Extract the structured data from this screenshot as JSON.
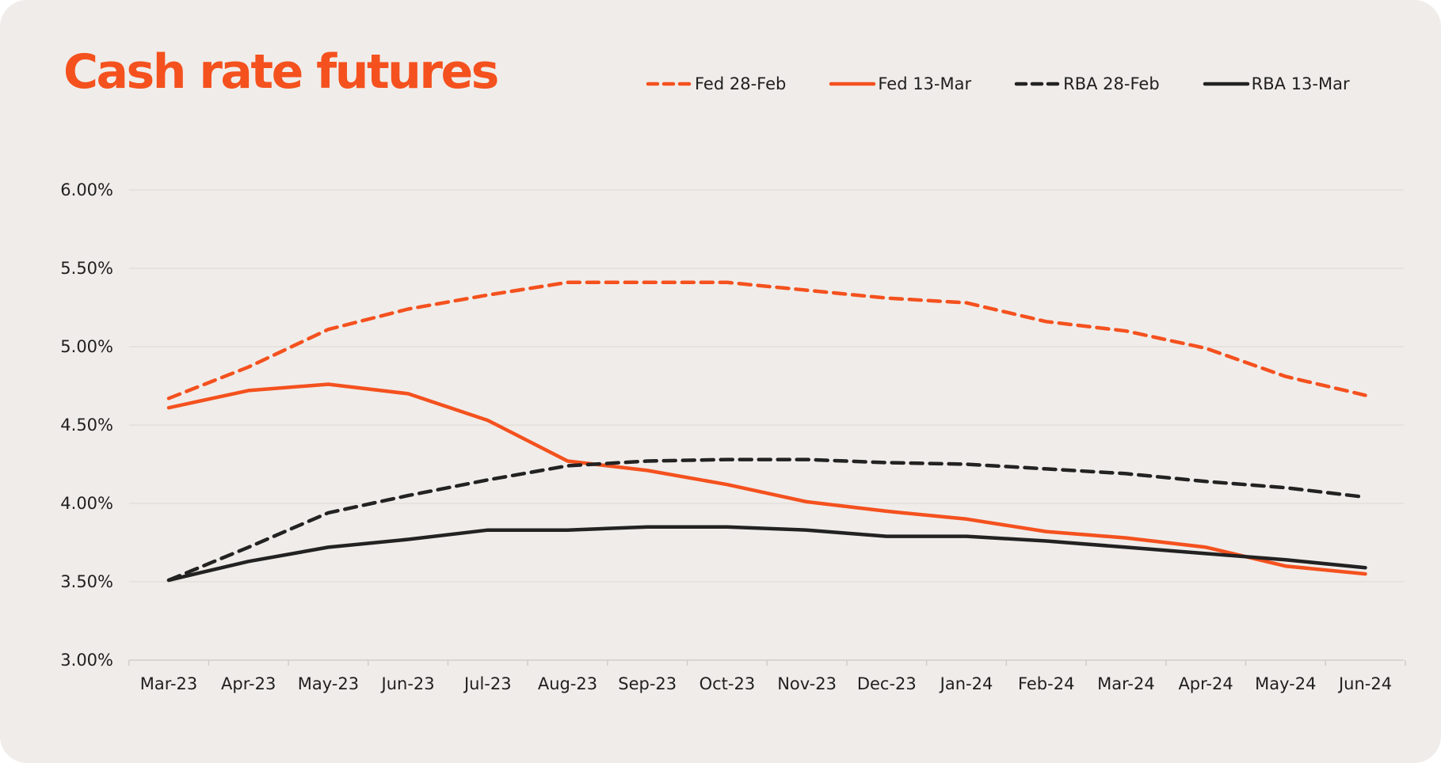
{
  "chart_data": {
    "type": "line",
    "title": "Cash rate futures",
    "xlabel": "",
    "ylabel": "",
    "categories": [
      "Mar-23",
      "Apr-23",
      "May-23",
      "Jun-23",
      "Jul-23",
      "Aug-23",
      "Sep-23",
      "Oct-23",
      "Nov-23",
      "Dec-23",
      "Jan-24",
      "Feb-24",
      "Mar-24",
      "Apr-24",
      "May-24",
      "Jun-24"
    ],
    "ylim": [
      3.0,
      6.0
    ],
    "yticks": [
      3.0,
      3.5,
      4.0,
      4.5,
      5.0,
      5.5,
      6.0
    ],
    "ytick_labels": [
      "3.00%",
      "3.50%",
      "4.00%",
      "4.50%",
      "5.00%",
      "5.50%",
      "6.00%"
    ],
    "grid": "horizontal",
    "legend_position": "top-right",
    "series": [
      {
        "name": "Fed 28-Feb",
        "color": "#f4511e",
        "dash": "dashed",
        "values": [
          4.67,
          4.87,
          5.11,
          5.24,
          5.33,
          5.41,
          5.41,
          5.41,
          5.36,
          5.31,
          5.28,
          5.16,
          5.1,
          4.99,
          4.81,
          4.69
        ]
      },
      {
        "name": "Fed 13-Mar",
        "color": "#f4511e",
        "dash": "solid",
        "values": [
          4.61,
          4.72,
          4.76,
          4.7,
          4.53,
          4.27,
          4.21,
          4.12,
          4.01,
          3.95,
          3.9,
          3.82,
          3.78,
          3.72,
          3.6,
          3.55
        ]
      },
      {
        "name": "RBA 28-Feb",
        "color": "#222222",
        "dash": "dashed",
        "values": [
          3.51,
          3.72,
          3.94,
          4.05,
          4.15,
          4.24,
          4.27,
          4.28,
          4.28,
          4.26,
          4.25,
          4.22,
          4.19,
          4.14,
          4.1,
          4.04
        ]
      },
      {
        "name": "RBA 13-Mar",
        "color": "#222222",
        "dash": "solid",
        "values": [
          3.51,
          3.63,
          3.72,
          3.77,
          3.83,
          3.83,
          3.85,
          3.85,
          3.83,
          3.79,
          3.79,
          3.76,
          3.72,
          3.68,
          3.64,
          3.59
        ]
      }
    ]
  }
}
